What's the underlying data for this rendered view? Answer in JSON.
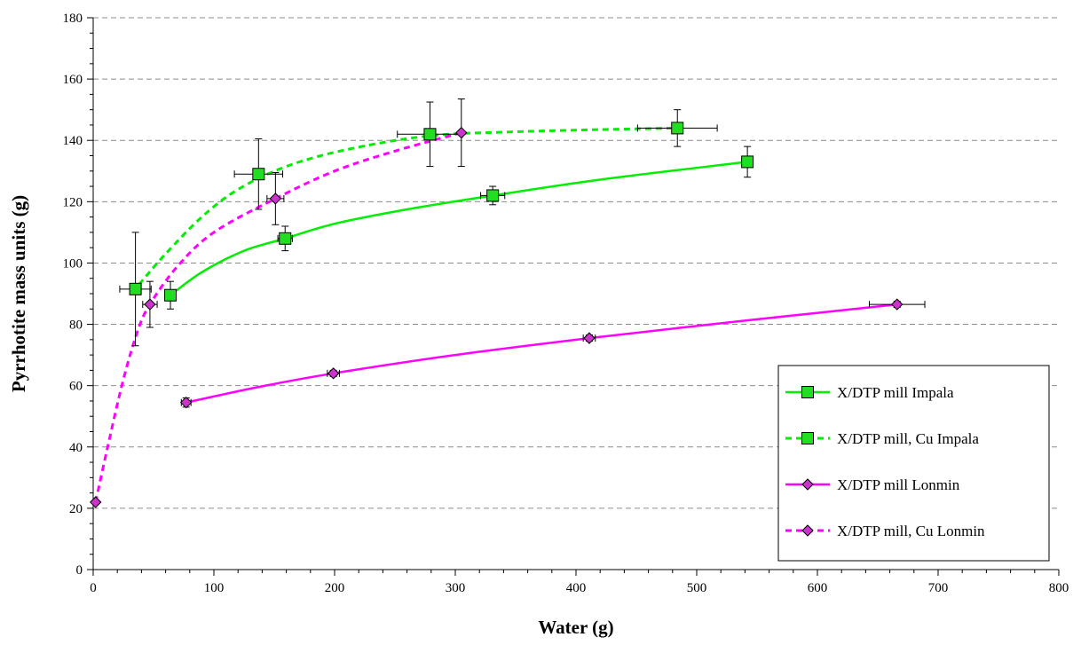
{
  "chart_data": {
    "type": "scatter",
    "xlabel": "Water (g)",
    "ylabel": "Pyrrhotite mass units (g)",
    "xlim": [
      0,
      800
    ],
    "ylim": [
      0,
      180
    ],
    "x_ticks": [
      "0",
      "100",
      "200",
      "300",
      "400",
      "500",
      "600",
      "700",
      "800"
    ],
    "y_ticks": [
      "0",
      "20",
      "40",
      "60",
      "80",
      "100",
      "120",
      "140",
      "160",
      "180"
    ],
    "grid": "horizontal dashed",
    "legend_position": "bottom-right",
    "series": [
      {
        "name": "X/DTP mill Impala",
        "marker": "square",
        "line": "solid",
        "color": "#00ee00",
        "marker_color": "#22dd22",
        "points": [
          {
            "x": 64,
            "y": 89.5,
            "yerr": 4.5
          },
          {
            "x": 159,
            "y": 108,
            "xerr": 6,
            "yerr": 4
          },
          {
            "x": 331,
            "y": 122,
            "xerr": 10,
            "yerr": 3
          },
          {
            "x": 542,
            "y": 133,
            "yerr": 5
          }
        ],
        "curve": [
          [
            64,
            89.5
          ],
          [
            90,
            97
          ],
          [
            125,
            104
          ],
          [
            159,
            108
          ],
          [
            200,
            112.8
          ],
          [
            260,
            117.5
          ],
          [
            331,
            122
          ],
          [
            420,
            127.2
          ],
          [
            542,
            133
          ]
        ]
      },
      {
        "name": "X/DTP mill, Cu Impala",
        "marker": "square",
        "line": "dashed",
        "color": "#00ee00",
        "marker_color": "#22dd22",
        "points": [
          {
            "x": 35,
            "y": 91.5,
            "xerr": 13,
            "yerr": 18.5
          },
          {
            "x": 137,
            "y": 129,
            "xerr": 20,
            "yerr": 11.5
          },
          {
            "x": 279,
            "y": 142,
            "xerr": 27,
            "yerr": 10.5
          },
          {
            "x": 484,
            "y": 144,
            "xerr": 33,
            "yerr": 6
          }
        ],
        "curve": [
          [
            38,
            93
          ],
          [
            60,
            103
          ],
          [
            90,
            115
          ],
          [
            120,
            124
          ],
          [
            160,
            131.5
          ],
          [
            210,
            137
          ],
          [
            279,
            141.5
          ],
          [
            350,
            142.8
          ],
          [
            420,
            143.5
          ],
          [
            484,
            144
          ]
        ]
      },
      {
        "name": "X/DTP mill Lonmin",
        "marker": "diamond",
        "line": "solid",
        "color": "#ff00ff",
        "marker_color": "#cc33cc",
        "points": [
          {
            "x": 77,
            "y": 54.5,
            "xerr": 4,
            "yerr": 1.5
          },
          {
            "x": 199,
            "y": 64,
            "xerr": 5,
            "yerr": 1
          },
          {
            "x": 411,
            "y": 75.5,
            "xerr": 5,
            "yerr": 1
          },
          {
            "x": 666,
            "y": 86.5,
            "xerr": 23,
            "yerr": 1
          }
        ],
        "curve": [
          [
            77,
            54.5
          ],
          [
            140,
            59.8
          ],
          [
            199,
            64
          ],
          [
            300,
            70
          ],
          [
            411,
            75.5
          ],
          [
            540,
            81.2
          ],
          [
            666,
            86.5
          ]
        ]
      },
      {
        "name": "X/DTP mill, Cu Lonmin",
        "marker": "diamond",
        "line": "dashed",
        "color": "#ff00ff",
        "marker_color": "#cc33cc",
        "points": [
          {
            "x": 2,
            "y": 22
          },
          {
            "x": 47,
            "y": 86.5,
            "xerr": 6,
            "yerr": 7.5
          },
          {
            "x": 151,
            "y": 121,
            "xerr": 7,
            "yerr": 8.5
          },
          {
            "x": 305,
            "y": 142.5,
            "yerr": 11
          }
        ],
        "curve": [
          [
            2,
            22
          ],
          [
            12,
            40
          ],
          [
            25,
            62
          ],
          [
            37,
            78
          ],
          [
            47,
            86.5
          ],
          [
            70,
            99
          ],
          [
            100,
            110
          ],
          [
            151,
            121
          ],
          [
            200,
            130
          ],
          [
            250,
            136.5
          ],
          [
            305,
            142.5
          ]
        ]
      }
    ]
  }
}
